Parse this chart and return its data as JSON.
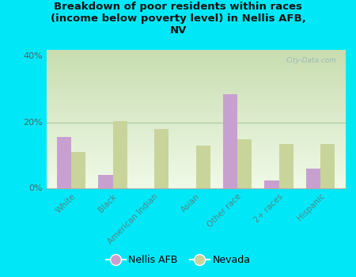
{
  "title": "Breakdown of poor residents within races\n(income below poverty level) in Nellis AFB,\nNV",
  "categories": [
    "White",
    "Black",
    "American Indian",
    "Asian",
    "Other race",
    "2+ races",
    "Hispanic"
  ],
  "nellis_values": [
    15.5,
    4.0,
    0.0,
    0.0,
    28.5,
    2.5,
    6.0
  ],
  "nevada_values": [
    11.0,
    20.5,
    18.0,
    13.0,
    15.0,
    13.5,
    13.5
  ],
  "nellis_color": "#c8a0d0",
  "nevada_color": "#c8d49a",
  "background_outer": "#00e8f8",
  "ylim": [
    0,
    42
  ],
  "yticks": [
    0,
    20,
    40
  ],
  "ytick_labels": [
    "0%",
    "20%",
    "40%"
  ],
  "watermark": "City-Data.com",
  "legend_nellis": "Nellis AFB",
  "legend_nevada": "Nevada",
  "bar_width": 0.35,
  "gradient_top": "#c8ddb0",
  "gradient_bottom": "#f0f8e8"
}
